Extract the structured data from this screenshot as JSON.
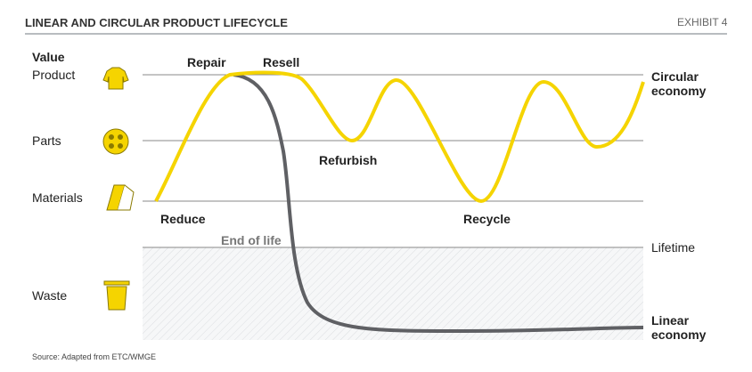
{
  "header": {
    "title": "LINEAR AND CIRCULAR PRODUCT LIFECYCLE",
    "exhibit": "EXHIBIT 4"
  },
  "levels": {
    "heading": "Value",
    "product": "Product",
    "parts": "Parts",
    "materials": "Materials",
    "waste": "Waste"
  },
  "stages": {
    "repair": "Repair",
    "resell": "Resell",
    "refurbish": "Refurbish",
    "reduce": "Reduce",
    "recycle": "Recycle",
    "end_of_life": "End of life"
  },
  "outcomes": {
    "circular": "Circular economy",
    "lifetime": "Lifetime",
    "linear": "Linear economy"
  },
  "source": "Source: Adapted from ETC/WMGE"
}
